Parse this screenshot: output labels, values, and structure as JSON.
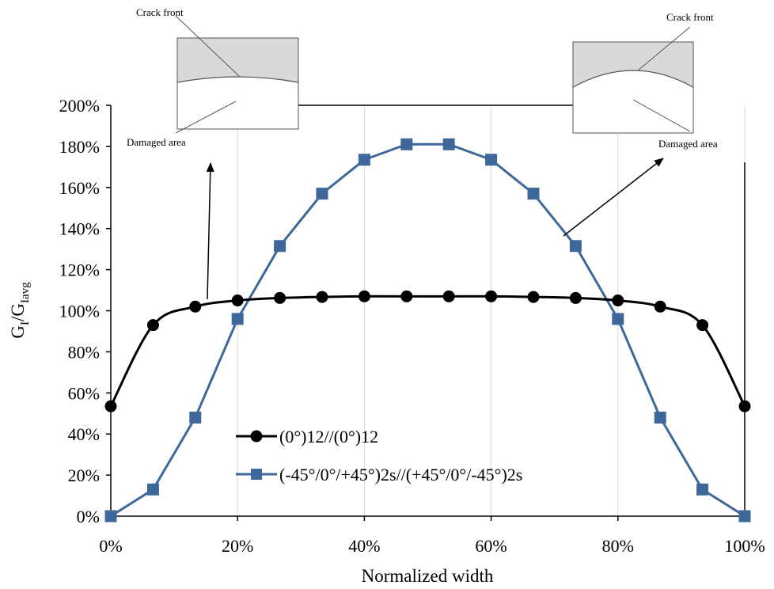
{
  "chart_data": {
    "type": "line",
    "title": "",
    "xlabel": "Normalized width",
    "ylabel": {
      "main": "G",
      "sub1": "I",
      "mid": "/G",
      "sub2": "Iavg"
    },
    "xlim": [
      0,
      100
    ],
    "ylim": [
      0,
      200
    ],
    "x_ticks": [
      0,
      20,
      40,
      60,
      80,
      100
    ],
    "x_tick_labels": [
      "0%",
      "20%",
      "40%",
      "60%",
      "80%",
      "100%"
    ],
    "y_ticks": [
      0,
      20,
      40,
      60,
      80,
      100,
      120,
      140,
      160,
      180,
      200
    ],
    "y_tick_labels": [
      "0%",
      "20%",
      "40%",
      "60%",
      "80%",
      "100%",
      "120%",
      "140%",
      "160%",
      "180%",
      "200%"
    ],
    "grid": "vertical",
    "legend": "lower-center",
    "series": [
      {
        "name": "(0°)12//(0°)12",
        "marker": "circle",
        "color": "#000000",
        "smooth": true,
        "x": [
          0,
          6.67,
          13.33,
          20,
          26.67,
          33.33,
          40,
          46.67,
          53.33,
          60,
          66.67,
          73.33,
          80,
          86.67,
          93.33,
          100
        ],
        "y": [
          53.5,
          93,
          102,
          105,
          106.2,
          106.7,
          107,
          107,
          107,
          107,
          106.7,
          106.2,
          105,
          102,
          93,
          53.5
        ]
      },
      {
        "name": "(-45°/0°/+45°)2s//(+45°/0°/-45°)2s",
        "marker": "square",
        "color": "#3E679A",
        "smooth": false,
        "x": [
          0,
          6.67,
          13.33,
          20,
          26.67,
          33.33,
          40,
          46.67,
          53.33,
          60,
          66.67,
          73.33,
          80,
          86.67,
          93.33,
          100
        ],
        "y": [
          0,
          13,
          48,
          96,
          131.5,
          157,
          173.5,
          181,
          181,
          173.5,
          157,
          131.5,
          96,
          48,
          13,
          0
        ]
      }
    ],
    "annotations": {
      "left_inset": {
        "crack_front": "Crack front",
        "damaged_area": "Damaged area"
      },
      "right_inset": {
        "crack_front": "Crack front",
        "damaged_area": "Damaged area"
      }
    }
  }
}
